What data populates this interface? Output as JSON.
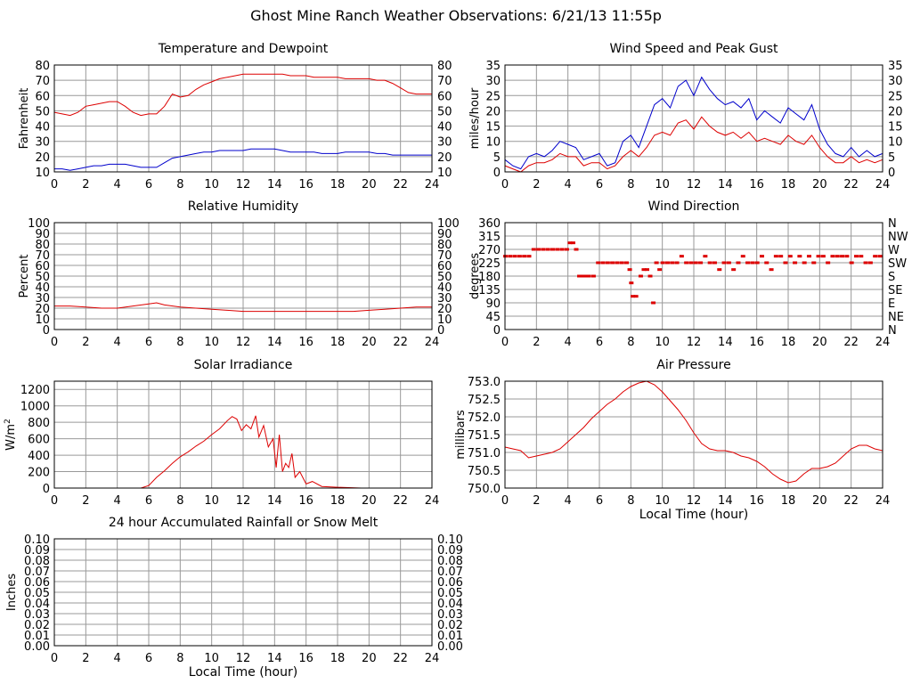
{
  "page": {
    "title": "Ghost Mine Ranch Weather Observations: 6/21/13 11:55p"
  },
  "colors": {
    "red": "#dd0000",
    "blue": "#0000cc",
    "grid": "#999999",
    "frame": "#000000"
  },
  "chart_data": [
    {
      "id": "temp",
      "type": "line",
      "title": "Temperature and Dewpoint",
      "ylabel": "Fahrenheit",
      "xlabel": "",
      "xlim": [
        0,
        24
      ],
      "ylim": [
        10,
        80
      ],
      "xticks": [
        0,
        2,
        4,
        6,
        8,
        10,
        12,
        14,
        16,
        18,
        20,
        22,
        24
      ],
      "yticks": [
        10,
        20,
        30,
        40,
        50,
        60,
        70,
        80
      ],
      "right_ticks": [
        "10",
        "20",
        "30",
        "40",
        "50",
        "60",
        "70",
        "80"
      ],
      "grid": true,
      "series": [
        {
          "color": "red",
          "x": [
            0,
            0.5,
            1,
            1.5,
            2,
            2.5,
            3,
            3.5,
            4,
            4.5,
            5,
            5.5,
            6,
            6.5,
            7,
            7.5,
            8,
            8.5,
            9,
            9.5,
            10,
            10.5,
            11,
            11.5,
            12,
            12.5,
            13,
            13.5,
            14,
            14.5,
            15,
            15.5,
            16,
            16.5,
            17,
            17.5,
            18,
            18.5,
            19,
            19.5,
            20,
            20.5,
            21,
            21.5,
            22,
            22.5,
            23,
            23.5,
            24
          ],
          "y": [
            49,
            48,
            47,
            49,
            53,
            54,
            55,
            56,
            56,
            53,
            49,
            47,
            48,
            48,
            53,
            61,
            59,
            60,
            64,
            67,
            69,
            71,
            72,
            73,
            74,
            74,
            74,
            74,
            74,
            74,
            73,
            73,
            73,
            72,
            72,
            72,
            72,
            71,
            71,
            71,
            71,
            70,
            70,
            68,
            65,
            62,
            61,
            61,
            61
          ]
        },
        {
          "color": "blue",
          "x": [
            0,
            0.5,
            1,
            1.5,
            2,
            2.5,
            3,
            3.5,
            4,
            4.5,
            5,
            5.5,
            6,
            6.5,
            7,
            7.5,
            8,
            8.5,
            9,
            9.5,
            10,
            10.5,
            11,
            11.5,
            12,
            12.5,
            13,
            13.5,
            14,
            14.5,
            15,
            15.5,
            16,
            16.5,
            17,
            17.5,
            18,
            18.5,
            19,
            19.5,
            20,
            20.5,
            21,
            21.5,
            22,
            22.5,
            23,
            23.5,
            24
          ],
          "y": [
            12,
            12,
            11,
            12,
            13,
            14,
            14,
            15,
            15,
            15,
            14,
            13,
            13,
            13,
            16,
            19,
            20,
            21,
            22,
            23,
            23,
            24,
            24,
            24,
            24,
            25,
            25,
            25,
            25,
            24,
            23,
            23,
            23,
            23,
            22,
            22,
            22,
            23,
            23,
            23,
            23,
            22,
            22,
            21,
            21,
            21,
            21,
            21,
            21
          ]
        }
      ]
    },
    {
      "id": "wind",
      "type": "line",
      "title": "Wind Speed and Peak Gust",
      "ylabel": "miles/hour",
      "xlabel": "",
      "xlim": [
        0,
        24
      ],
      "ylim": [
        0,
        35
      ],
      "xticks": [
        0,
        2,
        4,
        6,
        8,
        10,
        12,
        14,
        16,
        18,
        20,
        22,
        24
      ],
      "yticks": [
        0,
        5,
        10,
        15,
        20,
        25,
        30,
        35
      ],
      "right_ticks": [
        "0",
        "5",
        "10",
        "15",
        "20",
        "25",
        "30",
        "35"
      ],
      "grid": true,
      "series": [
        {
          "color": "blue",
          "x": [
            0,
            0.5,
            1,
            1.5,
            2,
            2.5,
            3,
            3.5,
            4,
            4.5,
            5,
            5.5,
            6,
            6.5,
            7,
            7.5,
            8,
            8.5,
            9,
            9.5,
            10,
            10.5,
            11,
            11.5,
            12,
            12.5,
            13,
            13.5,
            14,
            14.5,
            15,
            15.5,
            16,
            16.5,
            17,
            17.5,
            18,
            18.5,
            19,
            19.5,
            20,
            20.5,
            21,
            21.5,
            22,
            22.5,
            23,
            23.5,
            24
          ],
          "y": [
            4,
            2,
            1,
            5,
            6,
            5,
            7,
            10,
            9,
            8,
            4,
            5,
            6,
            2,
            3,
            10,
            12,
            8,
            15,
            22,
            24,
            21,
            28,
            30,
            25,
            31,
            27,
            24,
            22,
            23,
            21,
            24,
            17,
            20,
            18,
            16,
            21,
            19,
            17,
            22,
            14,
            9,
            6,
            5,
            8,
            5,
            7,
            5,
            6
          ]
        },
        {
          "color": "red",
          "x": [
            0,
            0.5,
            1,
            1.5,
            2,
            2.5,
            3,
            3.5,
            4,
            4.5,
            5,
            5.5,
            6,
            6.5,
            7,
            7.5,
            8,
            8.5,
            9,
            9.5,
            10,
            10.5,
            11,
            11.5,
            12,
            12.5,
            13,
            13.5,
            14,
            14.5,
            15,
            15.5,
            16,
            16.5,
            17,
            17.5,
            18,
            18.5,
            19,
            19.5,
            20,
            20.5,
            21,
            21.5,
            22,
            22.5,
            23,
            23.5,
            24
          ],
          "y": [
            2,
            1,
            0,
            2,
            3,
            3,
            4,
            6,
            5,
            5,
            2,
            3,
            3,
            1,
            2,
            5,
            7,
            5,
            8,
            12,
            13,
            12,
            16,
            17,
            14,
            18,
            15,
            13,
            12,
            13,
            11,
            13,
            10,
            11,
            10,
            9,
            12,
            10,
            9,
            12,
            8,
            5,
            3,
            3,
            5,
            3,
            4,
            3,
            4
          ]
        }
      ]
    },
    {
      "id": "humidity",
      "type": "line",
      "title": "Relative Humidity",
      "ylabel": "Percent",
      "xlabel": "",
      "xlim": [
        0,
        24
      ],
      "ylim": [
        0,
        100
      ],
      "xticks": [
        0,
        2,
        4,
        6,
        8,
        10,
        12,
        14,
        16,
        18,
        20,
        22,
        24
      ],
      "yticks": [
        0,
        10,
        20,
        30,
        40,
        50,
        60,
        70,
        80,
        90,
        100
      ],
      "right_ticks": [
        "0",
        "10",
        "20",
        "30",
        "40",
        "50",
        "60",
        "70",
        "80",
        "90",
        "100"
      ],
      "grid": true,
      "series": [
        {
          "color": "red",
          "x": [
            0,
            1,
            2,
            3,
            4,
            5,
            6,
            6.5,
            7,
            8,
            9,
            10,
            11,
            12,
            13,
            14,
            15,
            16,
            17,
            18,
            19,
            20,
            21,
            22,
            23,
            24
          ],
          "y": [
            22,
            22,
            21,
            20,
            20,
            22,
            24,
            25,
            23,
            21,
            20,
            19,
            18,
            17,
            17,
            17,
            17,
            17,
            17,
            17,
            17,
            18,
            19,
            20,
            21,
            21
          ]
        }
      ]
    },
    {
      "id": "direction",
      "type": "scatter",
      "title": "Wind Direction",
      "ylabel": "degrees",
      "xlabel": "",
      "xlim": [
        0,
        24
      ],
      "ylim": [
        0,
        360
      ],
      "xticks": [
        0,
        2,
        4,
        6,
        8,
        10,
        12,
        14,
        16,
        18,
        20,
        22,
        24
      ],
      "yticks": [
        0,
        45,
        90,
        135,
        180,
        225,
        270,
        315,
        360
      ],
      "right_ticks": [
        "N",
        "NE",
        "E",
        "SE",
        "S",
        "SW",
        "W",
        "NW",
        "N"
      ],
      "grid": true,
      "series": [
        {
          "color": "red",
          "x": [
            0,
            0.3,
            0.6,
            0.9,
            1.2,
            1.5,
            1.8,
            2.1,
            2.4,
            2.7,
            3.0,
            3.3,
            3.6,
            3.9,
            4.1,
            4.3,
            4.5,
            4.7,
            4.9,
            5.1,
            5.3,
            5.6,
            5.9,
            6.2,
            6.5,
            6.8,
            7.1,
            7.4,
            7.7,
            7.9,
            8.0,
            8.1,
            8.3,
            8.6,
            8.8,
            9.0,
            9.2,
            9.4,
            9.6,
            9.8,
            10.0,
            10.3,
            10.6,
            10.9,
            11.2,
            11.5,
            11.8,
            12.1,
            12.4,
            12.7,
            13.0,
            13.3,
            13.6,
            13.9,
            14.2,
            14.5,
            14.8,
            15.1,
            15.4,
            15.7,
            16.0,
            16.3,
            16.6,
            16.9,
            17.2,
            17.5,
            17.8,
            18.1,
            18.4,
            18.7,
            19.0,
            19.3,
            19.6,
            19.9,
            20.2,
            20.5,
            20.8,
            21.1,
            21.4,
            21.7,
            22.0,
            22.3,
            22.6,
            22.9,
            23.2,
            23.5,
            23.8
          ],
          "y": [
            247,
            247,
            247,
            247,
            247,
            247,
            270,
            270,
            270,
            270,
            270,
            270,
            270,
            270,
            292,
            292,
            270,
            180,
            180,
            180,
            180,
            180,
            225,
            225,
            225,
            225,
            225,
            225,
            225,
            202,
            157,
            112,
            112,
            180,
            202,
            202,
            180,
            90,
            225,
            202,
            225,
            225,
            225,
            225,
            247,
            225,
            225,
            225,
            225,
            247,
            225,
            225,
            202,
            225,
            225,
            202,
            225,
            247,
            225,
            225,
            225,
            247,
            225,
            202,
            247,
            247,
            225,
            247,
            225,
            247,
            225,
            247,
            225,
            247,
            247,
            225,
            247,
            247,
            247,
            247,
            225,
            247,
            247,
            225,
            225,
            247,
            247
          ]
        }
      ]
    },
    {
      "id": "solar",
      "type": "line",
      "title": "Solar Irradiance",
      "ylabel": "W/m",
      "ylabel_sup": "2",
      "xlabel": "",
      "xlim": [
        0,
        24
      ],
      "ylim": [
        0,
        1300
      ],
      "xticks": [
        0,
        2,
        4,
        6,
        8,
        10,
        12,
        14,
        16,
        18,
        20,
        22,
        24
      ],
      "yticks": [
        0,
        200,
        400,
        600,
        800,
        1000,
        1200
      ],
      "right_ticks": [],
      "grid": true,
      "series": [
        {
          "color": "red",
          "x": [
            0,
            5.5,
            6.0,
            6.5,
            7.0,
            7.5,
            8.0,
            8.5,
            9.0,
            9.5,
            10.0,
            10.5,
            11.0,
            11.3,
            11.6,
            11.9,
            12.2,
            12.5,
            12.8,
            13.0,
            13.3,
            13.6,
            13.9,
            14.1,
            14.3,
            14.5,
            14.7,
            14.9,
            15.1,
            15.3,
            15.6,
            16.0,
            16.4,
            17.0,
            18.0,
            19.5,
            24
          ],
          "y": [
            0,
            0,
            30,
            130,
            210,
            300,
            380,
            440,
            510,
            570,
            650,
            720,
            820,
            870,
            840,
            700,
            770,
            720,
            880,
            620,
            760,
            500,
            600,
            250,
            650,
            200,
            300,
            250,
            420,
            130,
            200,
            50,
            80,
            20,
            10,
            0,
            0
          ]
        }
      ]
    },
    {
      "id": "pressure",
      "type": "line",
      "title": "Air Pressure",
      "ylabel": "millibars",
      "xlabel": "Local Time (hour)",
      "xlim": [
        0,
        24
      ],
      "ylim": [
        750.0,
        753.0
      ],
      "xticks": [
        0,
        2,
        4,
        6,
        8,
        10,
        12,
        14,
        16,
        18,
        20,
        22,
        24
      ],
      "yticks": [
        750.0,
        750.5,
        751.0,
        751.5,
        752.0,
        752.5,
        753.0
      ],
      "right_ticks": [],
      "grid": true,
      "series": [
        {
          "color": "red",
          "x": [
            0,
            0.5,
            1.0,
            1.5,
            2.0,
            2.5,
            3.0,
            3.5,
            4.0,
            4.5,
            5.0,
            5.5,
            6.0,
            6.5,
            7.0,
            7.5,
            8.0,
            8.5,
            9.0,
            9.5,
            10.0,
            10.5,
            11.0,
            11.5,
            12.0,
            12.5,
            13.0,
            13.5,
            14.0,
            14.5,
            15.0,
            15.5,
            16.0,
            16.5,
            17.0,
            17.5,
            18.0,
            18.5,
            19.0,
            19.5,
            20.0,
            20.5,
            21.0,
            21.5,
            22.0,
            22.5,
            23.0,
            23.5,
            24.0
          ],
          "y": [
            751.15,
            751.1,
            751.05,
            750.85,
            750.9,
            750.95,
            751.0,
            751.1,
            751.3,
            751.5,
            751.7,
            751.95,
            752.15,
            752.35,
            752.5,
            752.7,
            752.85,
            752.95,
            753.0,
            752.9,
            752.7,
            752.45,
            752.2,
            751.9,
            751.55,
            751.25,
            751.1,
            751.05,
            751.05,
            751.0,
            750.9,
            750.85,
            750.75,
            750.6,
            750.4,
            750.25,
            750.15,
            750.2,
            750.4,
            750.55,
            750.55,
            750.6,
            750.7,
            750.9,
            751.1,
            751.2,
            751.2,
            751.1,
            751.05
          ]
        }
      ]
    },
    {
      "id": "rain",
      "type": "line",
      "title": "24 hour Accumulated Rainfall or Snow Melt",
      "ylabel": "Inches",
      "xlabel": "Local Time (hour)",
      "xlim": [
        0,
        24
      ],
      "ylim": [
        0,
        0.1
      ],
      "xticks": [
        0,
        2,
        4,
        6,
        8,
        10,
        12,
        14,
        16,
        18,
        20,
        22,
        24
      ],
      "yticks": [
        0.0,
        0.01,
        0.02,
        0.03,
        0.04,
        0.05,
        0.06,
        0.07,
        0.08,
        0.09,
        0.1
      ],
      "ytick_labels": [
        "0.00",
        "0.01",
        "0.02",
        "0.03",
        "0.04",
        "0.05",
        "0.06",
        "0.07",
        "0.08",
        "0.09",
        "0.10"
      ],
      "right_ticks": [
        "0.00",
        "0.01",
        "0.02",
        "0.03",
        "0.04",
        "0.05",
        "0.06",
        "0.07",
        "0.08",
        "0.09",
        "0.10"
      ],
      "grid": true,
      "series": [
        {
          "color": "red",
          "x": [
            0,
            24
          ],
          "y": [
            0,
            0
          ]
        }
      ]
    }
  ]
}
